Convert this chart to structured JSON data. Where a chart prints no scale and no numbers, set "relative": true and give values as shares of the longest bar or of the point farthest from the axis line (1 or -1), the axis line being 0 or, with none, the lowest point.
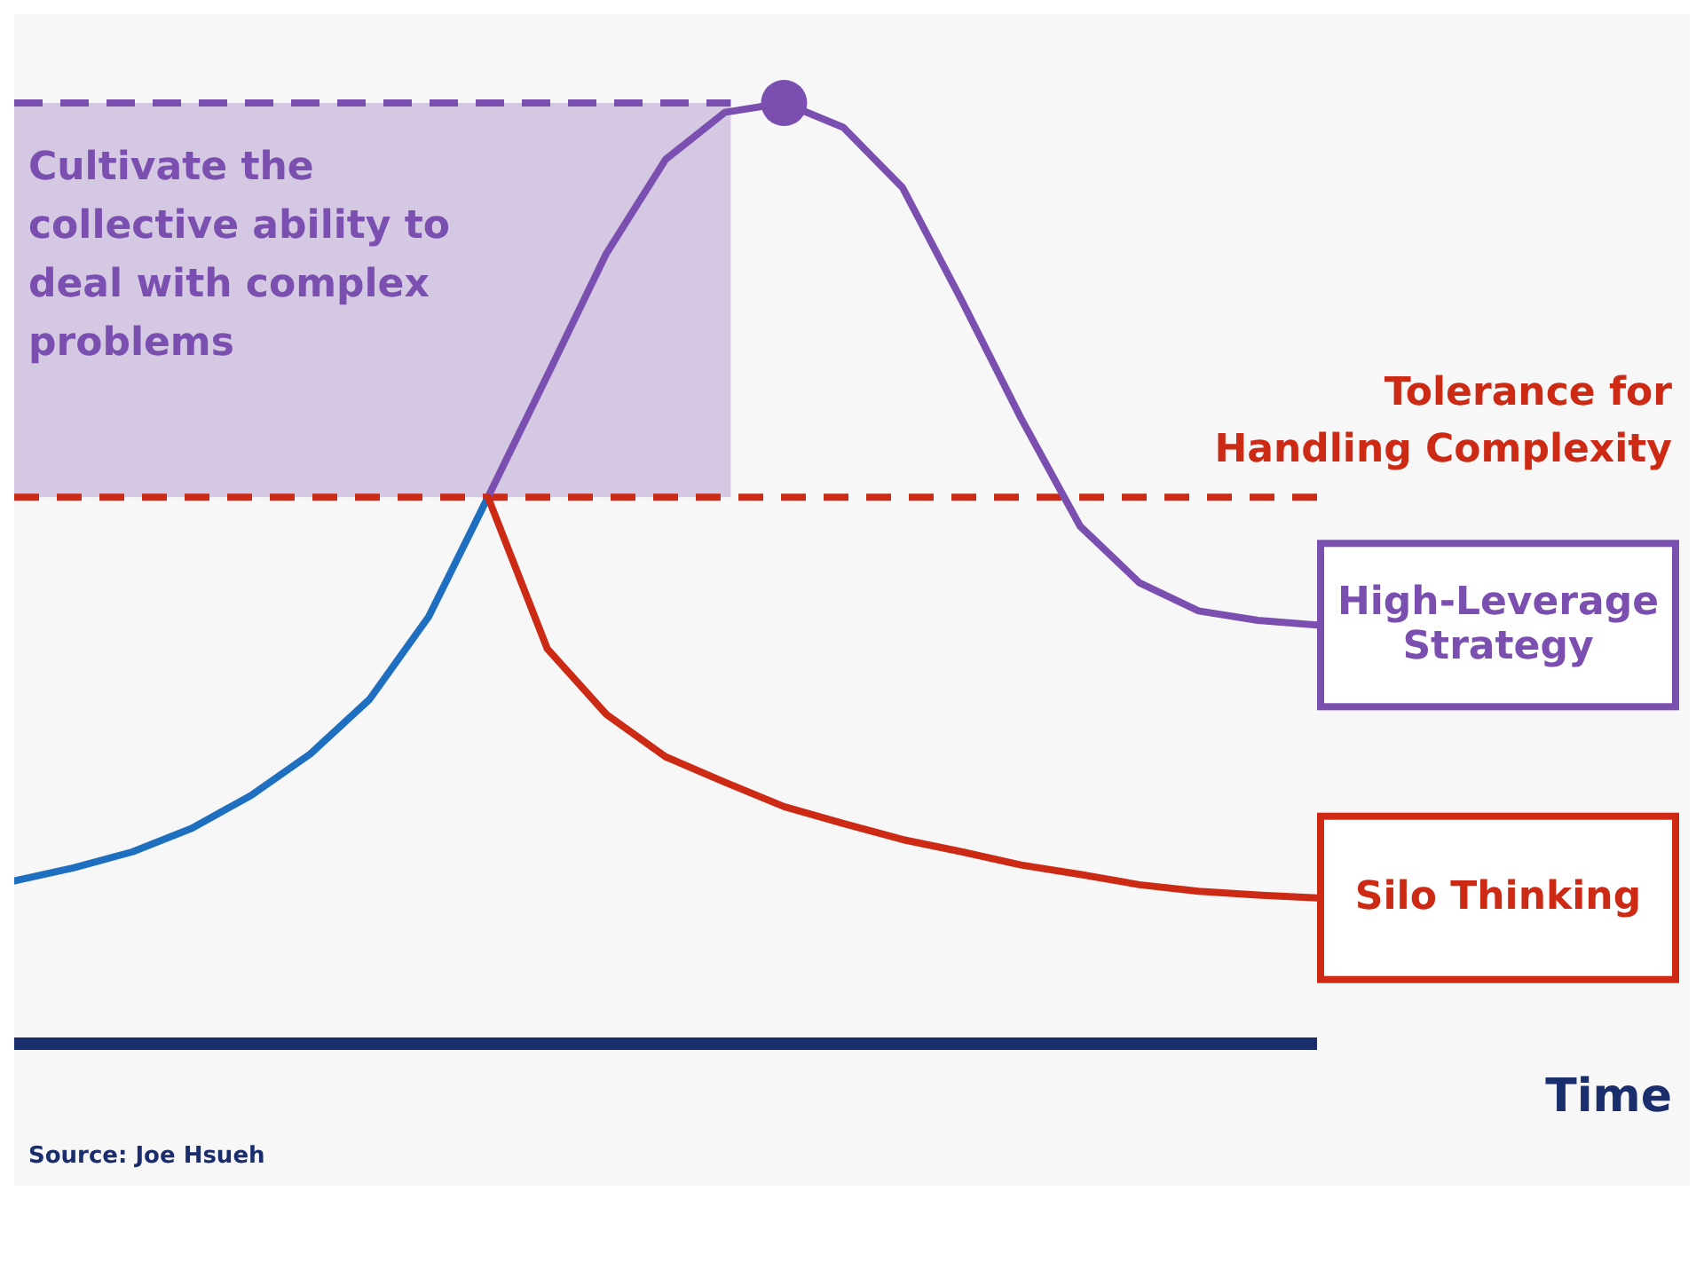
{
  "chart_data": {
    "type": "line",
    "relative": true,
    "xlabel": "Time",
    "legend": false,
    "grid": false,
    "marker": "none",
    "line_style": "solid",
    "categories": [
      null,
      null,
      null,
      null,
      null,
      null,
      null,
      null,
      null,
      null,
      null,
      null,
      null,
      null,
      null,
      null,
      null,
      null,
      null,
      null,
      null,
      null,
      null
    ],
    "series": [
      {
        "color": "#1f6fc0",
        "values": [
          0.173,
          0.187,
          0.204,
          0.229,
          0.264,
          0.308,
          0.366,
          0.454,
          0.581,
          null,
          null,
          null,
          null,
          null,
          null,
          null,
          null,
          null,
          null,
          null,
          null,
          null,
          null
        ]
      },
      {
        "name": "High-Leverage Strategy",
        "color": "#7b4fb0",
        "values": [
          null,
          null,
          null,
          null,
          null,
          null,
          null,
          null,
          0.581,
          0.71,
          0.84,
          0.94,
          0.99,
          1.0,
          0.974,
          0.91,
          0.79,
          0.665,
          0.55,
          0.49,
          0.46,
          0.45,
          0.445
        ]
      },
      {
        "name": "Silo Thinking",
        "color": "#cc2a14",
        "values": [
          null,
          null,
          null,
          null,
          null,
          null,
          null,
          null,
          0.581,
          0.42,
          0.35,
          0.305,
          0.278,
          0.252,
          0.234,
          0.217,
          0.204,
          0.19,
          0.18,
          0.169,
          0.162,
          0.158,
          0.155
        ]
      }
    ],
    "ref_lines": [
      {
        "axis": "y",
        "value": 0.581,
        "label": "Tolerance for Handling Complexity",
        "color": "#cc2a14",
        "line_style": "dashed"
      }
    ],
    "bands": [
      {
        "axis": "y",
        "from": 0.581,
        "to": 1.0,
        "label": "Cultivate the collective ability to deal with complex problems",
        "color": "#7b4fb0"
      }
    ],
    "annotations": [
      "Source: Joe Hsueh"
    ]
  }
}
